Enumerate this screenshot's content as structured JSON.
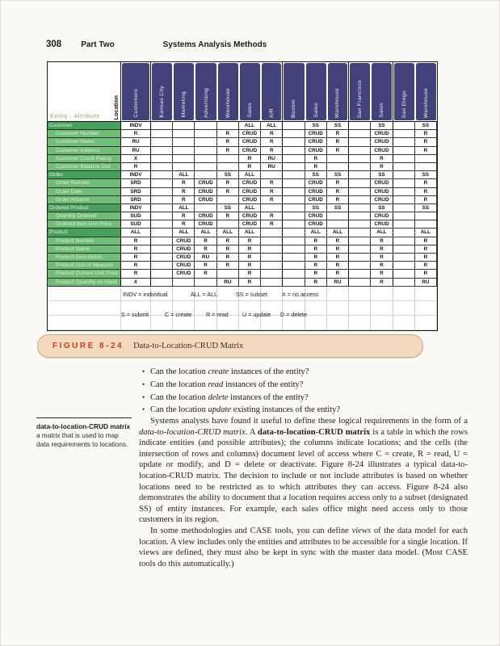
{
  "page_header": {
    "page_number": "308",
    "part_label": "Part Two",
    "section_title": "Systems Analysis Methods"
  },
  "matrix": {
    "corner_row_label": "Entity . Attribute",
    "corner_col_label": "Location",
    "columns": [
      {
        "label": "Customers",
        "thick_right": true
      },
      {
        "label": "Kansas City",
        "thick_right": false
      },
      {
        "label": "Marketing",
        "thick_right": false
      },
      {
        "label": "Advertising",
        "thick_right": false
      },
      {
        "label": "Warehouse",
        "thick_right": false
      },
      {
        "label": "Sales",
        "thick_right": false
      },
      {
        "label": "A/R",
        "thick_right": true
      },
      {
        "label": "Boston",
        "thick_right": false
      },
      {
        "label": "Sales",
        "thick_right": false
      },
      {
        "label": "Warehouse",
        "thick_right": true
      },
      {
        "label": "San Francisco",
        "thick_right": false
      },
      {
        "label": "Sales",
        "thick_right": true
      },
      {
        "label": "San Diego",
        "thick_right": false
      },
      {
        "label": "Warehouse",
        "thick_right": false
      }
    ],
    "rows": [
      {
        "label": "Customer",
        "type": "entity",
        "cells": [
          "INDV",
          "",
          "",
          "",
          "",
          "ALL",
          "ALL",
          "",
          "SS",
          "SS",
          "",
          "SS",
          "",
          "SS"
        ]
      },
      {
        "label": "Customer Number",
        "type": "attr",
        "cells": [
          "R",
          "",
          "",
          "",
          "R",
          "CRUD",
          "R",
          "",
          "CRUD",
          "R",
          "",
          "CRUD",
          "",
          "R"
        ]
      },
      {
        "label": "Customer Name",
        "type": "attr",
        "cells": [
          "RU",
          "",
          "",
          "",
          "R",
          "CRUD",
          "R",
          "",
          "CRUD",
          "R",
          "",
          "CRUD",
          "",
          "R"
        ]
      },
      {
        "label": "Customer Address",
        "type": "attr",
        "cells": [
          "RU",
          "",
          "",
          "",
          "R",
          "CRUD",
          "R",
          "",
          "CRUD",
          "R",
          "",
          "CRUD",
          "",
          "R"
        ]
      },
      {
        "label": "Customer Credit Rating",
        "type": "attr",
        "cells": [
          "X",
          "",
          "",
          "",
          "",
          "R",
          "RU",
          "",
          "R",
          "",
          "",
          "R",
          "",
          ""
        ]
      },
      {
        "label": "Customer Balance Due",
        "type": "attr",
        "cells": [
          "R",
          "",
          "",
          "",
          "",
          "R",
          "RU",
          "",
          "R",
          "",
          "",
          "R",
          "",
          ""
        ]
      },
      {
        "label": "Order",
        "type": "entity",
        "cells": [
          "INDV",
          "",
          "ALL",
          "",
          "SS",
          "ALL",
          "",
          "",
          "SS",
          "SS",
          "",
          "SS",
          "",
          "SS"
        ]
      },
      {
        "label": "Order Number",
        "type": "attr",
        "cells": [
          "SRD",
          "",
          "R",
          "CRUD",
          "R",
          "CRUD",
          "R",
          "",
          "CRUD",
          "R",
          "",
          "CRUD",
          "",
          "R"
        ]
      },
      {
        "label": "Order Date",
        "type": "attr",
        "cells": [
          "SRD",
          "",
          "R",
          "CRUD",
          "R",
          "CRUD",
          "R",
          "",
          "CRUD",
          "R",
          "",
          "CRUD",
          "",
          "R"
        ]
      },
      {
        "label": "Order Amount",
        "type": "attr",
        "cells": [
          "SRD",
          "",
          "R",
          "CRUD",
          "",
          "CRUD",
          "R",
          "",
          "CRUD",
          "R",
          "",
          "CRUD",
          "",
          "R"
        ]
      },
      {
        "label": "Ordered Product",
        "type": "entity",
        "cells": [
          "INDV",
          "",
          "ALL",
          "",
          "SS",
          "ALL",
          "",
          "",
          "SS",
          "SS",
          "",
          "SS",
          "",
          "SS"
        ]
      },
      {
        "label": "Quantity Ordered",
        "type": "attr",
        "cells": [
          "SUD",
          "",
          "R",
          "CRUD",
          "R",
          "CRUD",
          "R",
          "",
          "CRUD",
          "",
          "",
          "CRUD",
          "",
          ""
        ]
      },
      {
        "label": "Ordered Item Unit Price",
        "type": "attr",
        "cells": [
          "SUD",
          "",
          "R",
          "CRUD",
          "",
          "CRUD",
          "R",
          "",
          "CRUD",
          "",
          "",
          "CRUD",
          "",
          ""
        ]
      },
      {
        "label": "Product",
        "type": "entity",
        "cells": [
          "ALL",
          "",
          "ALL",
          "ALL",
          "ALL",
          "ALL",
          "",
          "",
          "ALL",
          "ALL",
          "",
          "ALL",
          "",
          "ALL"
        ]
      },
      {
        "label": "Product Number",
        "type": "attr",
        "cells": [
          "R",
          "",
          "CRUD",
          "R",
          "R",
          "R",
          "",
          "",
          "R",
          "R",
          "",
          "R",
          "",
          "R"
        ]
      },
      {
        "label": "Product Name",
        "type": "attr",
        "cells": [
          "R",
          "",
          "CRUD",
          "R",
          "R",
          "R",
          "",
          "",
          "R",
          "R",
          "",
          "R",
          "",
          "R"
        ]
      },
      {
        "label": "Product Description",
        "type": "attr",
        "cells": [
          "R",
          "",
          "CRUD",
          "RU",
          "R",
          "R",
          "",
          "",
          "R",
          "R",
          "",
          "R",
          "",
          "R"
        ]
      },
      {
        "label": "Product Unit of Measure",
        "type": "attr",
        "cells": [
          "R",
          "",
          "CRUD",
          "R",
          "R",
          "R",
          "",
          "",
          "R",
          "R",
          "",
          "R",
          "",
          "R"
        ]
      },
      {
        "label": "Product Current Unit Price",
        "type": "attr",
        "cells": [
          "R",
          "",
          "CRUD",
          "R",
          "",
          "R",
          "",
          "",
          "R",
          "R",
          "",
          "R",
          "",
          "R"
        ]
      },
      {
        "label": "Product Quantity on Hand",
        "type": "attr",
        "cells": [
          "X",
          "",
          "",
          "",
          "RU",
          "R",
          "",
          "",
          "R",
          "RU",
          "",
          "R",
          "",
          "RU"
        ]
      }
    ],
    "legend": [
      [
        "INDV = individual",
        "ALL = ALL",
        "SS = subset",
        "X = no access"
      ],
      [
        "S = submit",
        "C = create",
        "R = read",
        "U = update",
        "D = delete"
      ]
    ]
  },
  "figure_caption": {
    "label": "FIGURE 8-24",
    "title": "Data-to-Location-CRUD Matrix"
  },
  "bullets": [
    {
      "pre": "Can the location ",
      "em": "create",
      "post": " instances of the entity?"
    },
    {
      "pre": "Can the location ",
      "em": "read",
      "post": " instances of the entity?"
    },
    {
      "pre": "Can the location ",
      "em": "delete",
      "post": " instances of the entity?"
    },
    {
      "pre": "Can the location ",
      "em": "update",
      "post": " existing instances of the entity?"
    }
  ],
  "margin_note": {
    "term": "data-to-location-CRUD matrix",
    "definition": " a matrix that is used to map data requirements to locations."
  },
  "paragraphs": [
    {
      "segments": [
        {
          "t": "Systems analysts have found it useful to define these logical requirements in the form of a ",
          "s": ""
        },
        {
          "t": "data-to-location-CRUD matrix",
          "s": "i"
        },
        {
          "t": ". A ",
          "s": ""
        },
        {
          "t": "data-to-location-CRUD matrix",
          "s": "b"
        },
        {
          "t": " is a table in which the rows indicate entities (and possible attributes); the columns indicate locations; and the cells (the intersection of rows and columns) document level of access where C = create, R = read, U = update or modify, and D = delete or deactivate. Figure 8-24 illustrates a typical data-to-location-CRUD matrix. The decision to include or not include attributes is based on whether locations need to be restricted as to which attributes they can access. Figure 8-24 also demonstrates the ability to document that a location requires access only to a subset (designated SS) of entity instances. For example, each sales office might need access only to those customers in its region.",
          "s": ""
        }
      ]
    },
    {
      "segments": [
        {
          "t": "In some methodologies and CASE tools, you can define ",
          "s": ""
        },
        {
          "t": "views",
          "s": "i"
        },
        {
          "t": " of the data model for each location. A view includes only the entities and attributes to be accessible for a single location. If views are defined, they must also be kept in sync with the master data model. (Most CASE tools do this automatically.)",
          "s": ""
        }
      ]
    }
  ],
  "colors": {
    "header_cell": "#41417b",
    "entity_row": "#44a05c",
    "attribute_row": "#6fbd77",
    "caption_bg": "#f5d9bd",
    "figure_label_red": "#c2401f"
  }
}
